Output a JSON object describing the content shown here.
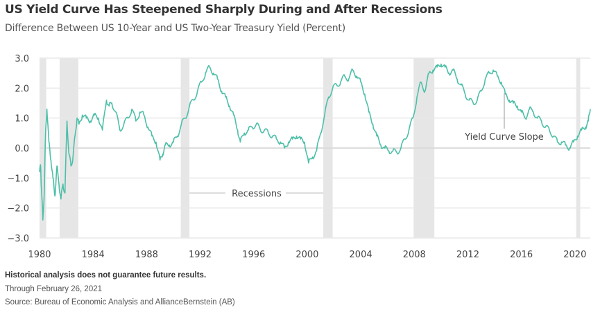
{
  "chart_data": {
    "type": "line",
    "title": "US Yield Curve Has Steepened Sharply During and After Recessions",
    "subtitle": "Difference Between US 10-Year and US Two-Year Treasury Yield (Percent)",
    "xlabel": "",
    "ylabel": "",
    "xlim": [
      1980,
      2021.15
    ],
    "ylim": [
      -3.0,
      3.0
    ],
    "grid": true,
    "y_ticks": [
      "3.0",
      "2.0",
      "1.0",
      "0.0",
      "−1.0",
      "−2.0",
      "−3.0"
    ],
    "y_tick_values": [
      3,
      2,
      1,
      0,
      -1,
      -2,
      -3
    ],
    "x_ticks": [
      "1980",
      "1984",
      "1988",
      "1992",
      "1996",
      "2000",
      "2004",
      "2008",
      "2012",
      "2016",
      "2020"
    ],
    "x_tick_values": [
      1980,
      1984,
      1988,
      1992,
      1996,
      2000,
      2004,
      2008,
      2012,
      2016,
      2020
    ],
    "recessions": [
      [
        1980.0,
        1980.5
      ],
      [
        1981.5,
        1982.9
      ],
      [
        1990.55,
        1991.2
      ],
      [
        2001.2,
        2001.9
      ],
      [
        2007.95,
        2009.5
      ],
      [
        2020.1,
        2020.4
      ]
    ],
    "series": [
      {
        "name": "Yield Curve Slope",
        "color": "#4dbfa8",
        "note": "Approximate anchor points read visually from the chart",
        "x": [
          1980.0,
          1980.08,
          1980.15,
          1980.25,
          1980.35,
          1980.45,
          1980.55,
          1980.7,
          1980.85,
          1981.0,
          1981.15,
          1981.3,
          1981.45,
          1981.6,
          1981.75,
          1981.9,
          1982.05,
          1982.2,
          1982.35,
          1982.5,
          1982.65,
          1982.8,
          1982.95,
          1983.2,
          1983.5,
          1983.8,
          1984.1,
          1984.4,
          1984.7,
          1985.0,
          1985.2,
          1985.4,
          1985.7,
          1986.0,
          1986.3,
          1986.6,
          1986.9,
          1987.2,
          1987.5,
          1987.8,
          1988.1,
          1988.4,
          1988.7,
          1989.0,
          1989.2,
          1989.4,
          1989.7,
          1990.0,
          1990.3,
          1990.6,
          1990.9,
          1991.2,
          1991.5,
          1991.8,
          1992.1,
          1992.4,
          1992.7,
          1993.0,
          1993.3,
          1993.6,
          1993.9,
          1994.2,
          1994.5,
          1994.8,
          1995.0,
          1995.3,
          1995.6,
          1995.9,
          1996.2,
          1996.5,
          1996.8,
          1997.1,
          1997.4,
          1997.7,
          1998.0,
          1998.3,
          1998.6,
          1998.9,
          1999.2,
          1999.5,
          1999.8,
          2000.1,
          2000.4,
          2000.7,
          2001.0,
          2001.3,
          2001.6,
          2001.9,
          2002.2,
          2002.5,
          2002.8,
          2003.1,
          2003.4,
          2003.7,
          2004.0,
          2004.3,
          2004.6,
          2004.9,
          2005.2,
          2005.5,
          2005.8,
          2006.1,
          2006.4,
          2006.7,
          2007.0,
          2007.3,
          2007.6,
          2007.9,
          2008.2,
          2008.5,
          2008.8,
          2009.1,
          2009.4,
          2009.7,
          2010.0,
          2010.3,
          2010.6,
          2010.9,
          2011.2,
          2011.5,
          2011.8,
          2012.1,
          2012.4,
          2012.7,
          2013.0,
          2013.3,
          2013.6,
          2013.9,
          2014.2,
          2014.5,
          2014.8,
          2015.1,
          2015.4,
          2015.7,
          2016.0,
          2016.3,
          2016.6,
          2016.9,
          2017.2,
          2017.5,
          2017.8,
          2018.1,
          2018.4,
          2018.7,
          2019.0,
          2019.3,
          2019.6,
          2019.9,
          2020.2,
          2020.5,
          2020.8,
          2021.0,
          2021.15
        ],
        "y": [
          -0.8,
          -0.6,
          -1.4,
          -2.4,
          -1.5,
          0.5,
          1.3,
          0.2,
          -0.4,
          -1.0,
          -1.6,
          -0.6,
          -1.2,
          -1.7,
          -1.2,
          -1.5,
          0.9,
          -0.2,
          -0.6,
          -0.3,
          0.4,
          1.0,
          0.8,
          1.1,
          1.0,
          0.9,
          1.1,
          1.0,
          0.6,
          1.6,
          1.4,
          1.5,
          1.2,
          0.6,
          0.8,
          1.0,
          1.3,
          0.9,
          1.2,
          1.1,
          0.7,
          0.4,
          0.2,
          -0.4,
          -0.2,
          0.1,
          0.1,
          0.2,
          0.4,
          0.8,
          1.0,
          1.4,
          1.6,
          1.9,
          2.2,
          2.5,
          2.7,
          2.5,
          2.3,
          1.9,
          1.7,
          1.4,
          1.1,
          0.6,
          0.2,
          0.5,
          0.6,
          0.7,
          0.8,
          0.6,
          0.6,
          0.5,
          0.4,
          0.3,
          0.2,
          0.0,
          0.2,
          0.3,
          0.4,
          0.3,
          0.2,
          -0.5,
          -0.3,
          -0.1,
          0.5,
          1.1,
          1.7,
          2.0,
          2.1,
          2.2,
          2.4,
          2.3,
          2.6,
          2.4,
          2.2,
          1.8,
          1.2,
          0.8,
          0.4,
          0.1,
          0.0,
          -0.1,
          -0.1,
          -0.15,
          0.0,
          0.3,
          0.6,
          1.0,
          1.7,
          2.2,
          1.9,
          2.5,
          2.6,
          2.7,
          2.8,
          2.7,
          2.5,
          2.6,
          2.3,
          2.1,
          1.8,
          1.6,
          1.5,
          1.6,
          1.9,
          2.3,
          2.5,
          2.6,
          2.4,
          2.2,
          1.8,
          1.6,
          1.5,
          1.4,
          1.2,
          1.0,
          1.3,
          1.2,
          1.0,
          0.9,
          0.7,
          0.6,
          0.4,
          0.2,
          0.2,
          0.1,
          0.0,
          0.2,
          0.4,
          0.6,
          0.7,
          0.9,
          1.3
        ]
      }
    ],
    "annotations": [
      {
        "text": "Recessions",
        "target": "recession bands"
      },
      {
        "text": "Yield Curve Slope",
        "target": "series line"
      }
    ]
  },
  "footer": {
    "disclaimer": "Historical analysis does not guarantee future results.",
    "date_note": "Through February 26, 2021",
    "source": "Source: Bureau of Economic Analysis and AllianceBernstein (AB)"
  },
  "colors": {
    "line": "#4dbfa8",
    "recession_band": "#e6e6e6",
    "gridline": "#e8e8e8"
  }
}
